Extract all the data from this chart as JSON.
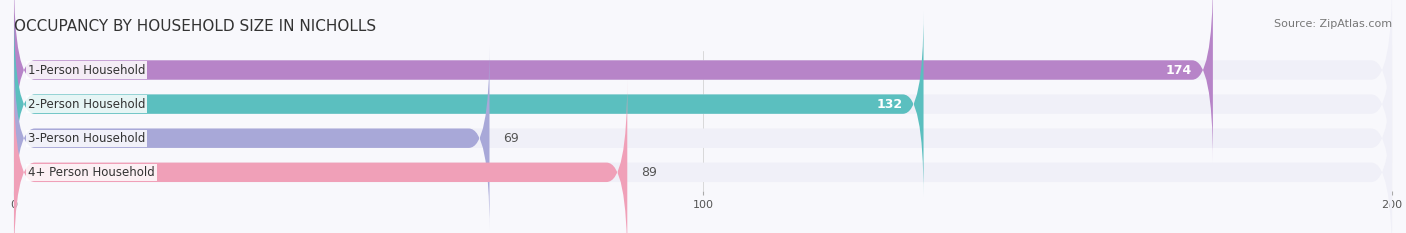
{
  "title": "OCCUPANCY BY HOUSEHOLD SIZE IN NICHOLLS",
  "source": "Source: ZipAtlas.com",
  "categories": [
    "1-Person Household",
    "2-Person Household",
    "3-Person Household",
    "4+ Person Household"
  ],
  "values": [
    174,
    132,
    69,
    89
  ],
  "bar_colors": [
    "#b784c8",
    "#5bbfbf",
    "#a8a8d8",
    "#f0a0b8"
  ],
  "bar_bg_color": "#f0f0f8",
  "label_colors": [
    "white",
    "white",
    "#555555",
    "#555555"
  ],
  "xlim": [
    0,
    200
  ],
  "xticks": [
    0,
    100,
    200
  ],
  "title_fontsize": 11,
  "source_fontsize": 8,
  "bar_label_fontsize": 9,
  "category_fontsize": 8.5,
  "bar_height": 0.55,
  "background_color": "#f8f8fc"
}
